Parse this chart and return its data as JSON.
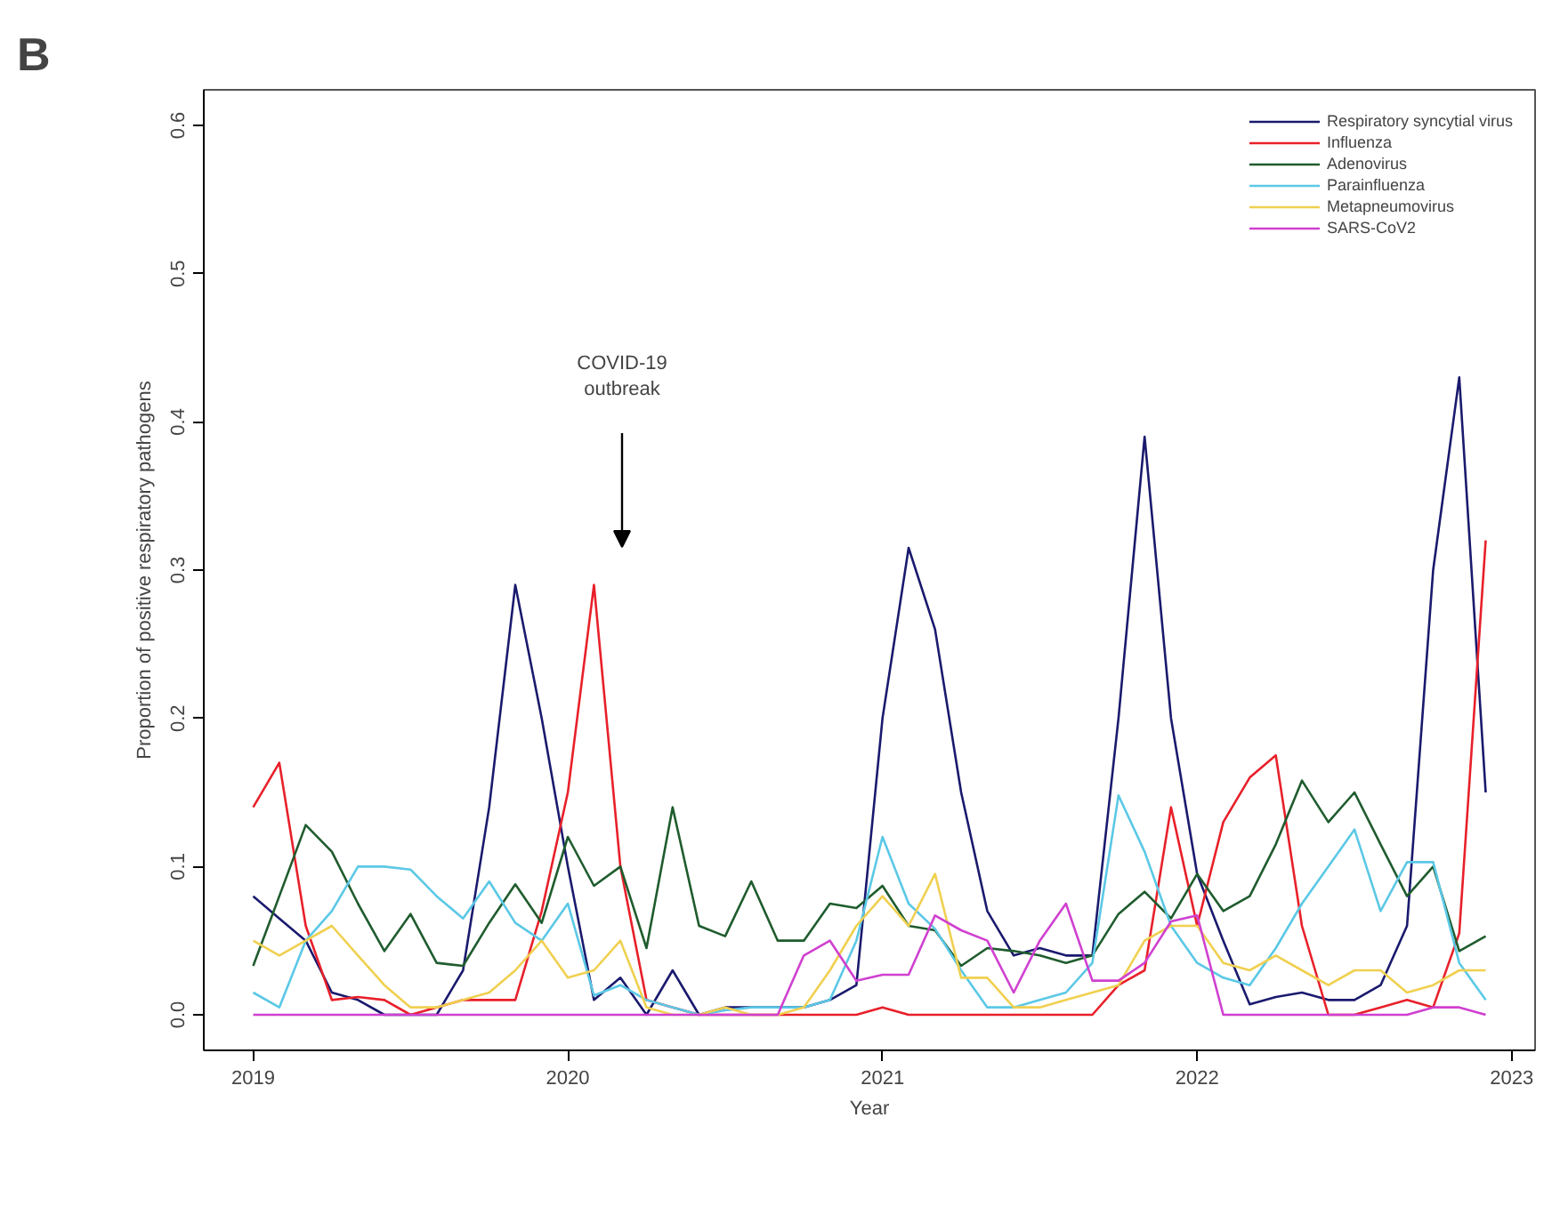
{
  "chart_data": {
    "type": "line",
    "xlabel": "Year",
    "ylabel": "Proportion of positive respiratory pathogens",
    "annotations": [
      "B",
      "COVID-19\noutbreak"
    ],
    "x": [
      2019,
      2019.083,
      2019.167,
      2019.25,
      2019.333,
      2019.417,
      2019.5,
      2019.583,
      2019.667,
      2019.75,
      2019.833,
      2019.917,
      2020,
      2020.083,
      2020.167,
      2020.25,
      2020.333,
      2020.417,
      2020.5,
      2020.583,
      2020.667,
      2020.75,
      2020.833,
      2020.917,
      2021,
      2021.083,
      2021.167,
      2021.25,
      2021.333,
      2021.417,
      2021.5,
      2021.583,
      2021.667,
      2021.75,
      2021.833,
      2021.917,
      2022,
      2022.083,
      2022.167,
      2022.25,
      2022.333,
      2022.417,
      2022.5,
      2022.583,
      2022.667,
      2022.75,
      2022.833,
      2022.917
    ],
    "series": [
      {
        "name": "Respiratory syncytial virus",
        "color": "#1a1a6e",
        "values": [
          0.08,
          0.065,
          0.05,
          0.015,
          0.01,
          0.0,
          0.0,
          0.0,
          0.03,
          0.14,
          0.29,
          0.2,
          0.1,
          0.01,
          0.025,
          0.0,
          0.03,
          0.0,
          0.005,
          0.005,
          0.005,
          0.005,
          0.01,
          0.02,
          0.2,
          0.315,
          0.26,
          0.15,
          0.07,
          0.04,
          0.045,
          0.04,
          0.04,
          0.2,
          0.39,
          0.2,
          0.095,
          0.05,
          0.007,
          0.012,
          0.015,
          0.01,
          0.01,
          0.02,
          0.06,
          0.3,
          0.43,
          0.15
        ]
      },
      {
        "name": "Influenza",
        "color": "#e8202a",
        "values": [
          0.14,
          0.17,
          0.06,
          0.01,
          0.012,
          0.01,
          0.0,
          0.005,
          0.01,
          0.01,
          0.01,
          0.07,
          0.15,
          0.29,
          0.1,
          0.01,
          0.005,
          0.0,
          0.0,
          0.0,
          0.0,
          0.0,
          0.0,
          0.0,
          0.005,
          0.0,
          0.0,
          0.0,
          0.0,
          0.0,
          0.0,
          0.0,
          0.0,
          0.02,
          0.03,
          0.14,
          0.06,
          0.13,
          0.16,
          0.175,
          0.06,
          0.0,
          0.0,
          0.005,
          0.01,
          0.005,
          0.055,
          0.32
        ]
      },
      {
        "name": "Adenovirus",
        "color": "#1f5c2e",
        "values": [
          0.033,
          0.08,
          0.128,
          0.11,
          0.075,
          0.043,
          0.068,
          0.035,
          0.033,
          0.062,
          0.088,
          0.062,
          0.12,
          0.087,
          0.1,
          0.045,
          0.14,
          0.06,
          0.053,
          0.09,
          0.05,
          0.05,
          0.075,
          0.072,
          0.087,
          0.06,
          0.057,
          0.033,
          0.045,
          0.043,
          0.04,
          0.035,
          0.04,
          0.068,
          0.083,
          0.065,
          0.095,
          0.07,
          0.08,
          0.115,
          0.158,
          0.13,
          0.15,
          0.115,
          0.08,
          0.1,
          0.043,
          0.053
        ]
      },
      {
        "name": "Parainfluenza",
        "color": "#5bc8e6",
        "values": [
          0.015,
          0.005,
          0.05,
          0.07,
          0.1,
          0.1,
          0.098,
          0.08,
          0.065,
          0.09,
          0.062,
          0.05,
          0.075,
          0.013,
          0.02,
          0.01,
          0.005,
          0.0,
          0.003,
          0.005,
          0.005,
          0.005,
          0.01,
          0.05,
          0.12,
          0.075,
          0.058,
          0.03,
          0.005,
          0.005,
          0.01,
          0.015,
          0.035,
          0.148,
          0.11,
          0.06,
          0.035,
          0.025,
          0.02,
          0.045,
          0.075,
          0.1,
          0.125,
          0.07,
          0.103,
          0.103,
          0.035,
          0.01
        ]
      },
      {
        "name": "Metapneumovirus",
        "color": "#f0d050",
        "values": [
          0.05,
          0.04,
          0.05,
          0.06,
          0.04,
          0.02,
          0.005,
          0.005,
          0.01,
          0.015,
          0.03,
          0.05,
          0.025,
          0.03,
          0.05,
          0.005,
          0.0,
          0.0,
          0.005,
          0.0,
          0.0,
          0.005,
          0.03,
          0.06,
          0.08,
          0.06,
          0.095,
          0.025,
          0.025,
          0.005,
          0.005,
          0.01,
          0.015,
          0.02,
          0.05,
          0.06,
          0.06,
          0.035,
          0.03,
          0.04,
          0.03,
          0.02,
          0.03,
          0.03,
          0.015,
          0.02,
          0.03,
          0.03
        ]
      },
      {
        "name": "SARS-CoV2",
        "color": "#d040d0",
        "values": [
          0,
          0,
          0,
          0,
          0,
          0,
          0,
          0,
          0,
          0,
          0,
          0,
          0,
          0,
          0,
          0,
          0,
          0,
          0,
          0,
          0,
          0.04,
          0.05,
          0.023,
          0.027,
          0.027,
          0.067,
          0.057,
          0.05,
          0.015,
          0.05,
          0.075,
          0.023,
          0.023,
          0.035,
          0.063,
          0.067,
          0.0,
          0.0,
          0.0,
          0.0,
          0.0,
          0.0,
          0.0,
          0.0,
          0.005,
          0.005,
          0.0
        ]
      }
    ],
    "xlim": [
      2018.843,
      2023.074
    ],
    "ylim": [
      -0.024,
      0.624
    ],
    "xticks": [
      2019,
      2020,
      2021,
      2022,
      2023
    ],
    "yticks": [
      {
        "value": 0,
        "label": "0.0"
      },
      0.1,
      0.2,
      0.3,
      0.4,
      0.5,
      0.6
    ],
    "grid": false,
    "legend": "top right",
    "marker": "none",
    "line_style": "solid"
  }
}
